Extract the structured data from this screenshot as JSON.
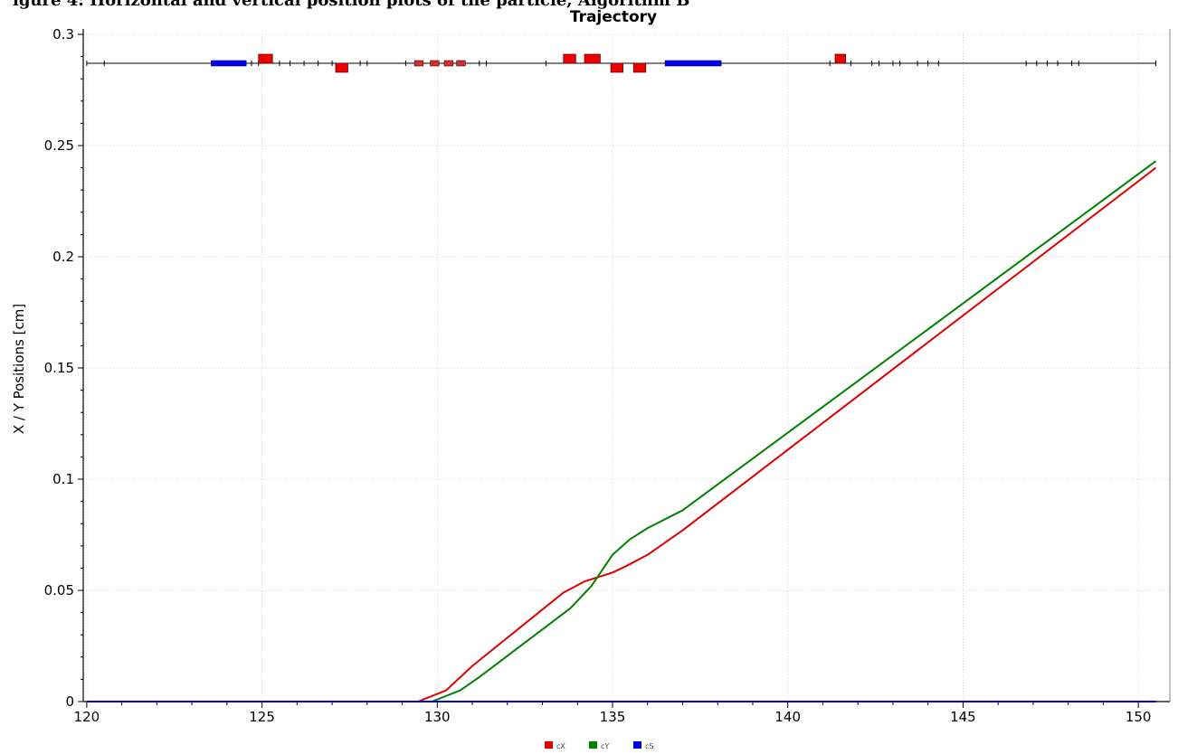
{
  "caption": "igure 4: Horizontal and vertical position plots of the particle, Algorithm B",
  "chart_data": {
    "type": "line",
    "title": "Trajectory",
    "xlabel": "",
    "ylabel": "X / Y Positions [cm]",
    "xlim": [
      119.9,
      150.9
    ],
    "ylim": [
      0,
      0.3
    ],
    "xticks": [
      "120",
      "125",
      "130",
      "135",
      "140",
      "145",
      "150"
    ],
    "yticks": [
      "0",
      "0.05",
      "0.1",
      "0.15",
      "0.2",
      "0.25",
      "0.3"
    ],
    "grid": true,
    "legend_position": "bottom-center",
    "series": [
      {
        "name": "cX",
        "color": "#e00000",
        "points": [
          [
            120,
            0
          ],
          [
            129.45,
            0
          ],
          [
            130.25,
            0.005
          ],
          [
            131,
            0.016
          ],
          [
            133.6,
            0.049
          ],
          [
            134.2,
            0.054
          ],
          [
            135,
            0.058
          ],
          [
            135.4,
            0.061
          ],
          [
            136,
            0.066
          ],
          [
            137,
            0.077
          ],
          [
            150.5,
            0.24
          ]
        ]
      },
      {
        "name": "cY",
        "color": "#008000",
        "points": [
          [
            120,
            0
          ],
          [
            129.85,
            0
          ],
          [
            130.65,
            0.005
          ],
          [
            131.2,
            0.011
          ],
          [
            133.8,
            0.042
          ],
          [
            134.4,
            0.052
          ],
          [
            135,
            0.066
          ],
          [
            135.5,
            0.073
          ],
          [
            136,
            0.078
          ],
          [
            137,
            0.086
          ],
          [
            150.5,
            0.243
          ]
        ]
      },
      {
        "name": "cS",
        "color": "#0000dd",
        "points": [
          [
            120,
            0
          ],
          [
            150.5,
            0
          ]
        ]
      }
    ],
    "lattice": {
      "beamline_y": 0.287,
      "line_color": "#000000",
      "line_range": [
        120,
        150.5
      ],
      "markers": [
        120,
        120.5,
        124.7,
        124.9,
        125.5,
        125.8,
        126.2,
        126.6,
        127,
        127.8,
        128,
        129.1,
        131.2,
        131.4,
        133.1,
        141.2,
        141.8,
        142.4,
        142.6,
        143,
        143.2,
        143.7,
        144,
        144.3,
        146.8,
        147.1,
        147.4,
        147.7,
        148.1,
        148.3,
        150.5
      ],
      "dipoles": [
        {
          "x1": 123.55,
          "x2": 124.55,
          "color": "#0000ee"
        },
        {
          "x1": 136.5,
          "x2": 138.1,
          "color": "#0000ee"
        }
      ],
      "quads_up": [
        {
          "x1": 124.9,
          "x2": 125.3
        },
        {
          "x1": 133.6,
          "x2": 133.95
        },
        {
          "x1": 134.2,
          "x2": 134.65
        },
        {
          "x1": 141.35,
          "x2": 141.65
        }
      ],
      "quads_down": [
        {
          "x1": 127.1,
          "x2": 127.45
        },
        {
          "x1": 134.95,
          "x2": 135.3
        },
        {
          "x1": 135.6,
          "x2": 135.95
        }
      ],
      "small_elements": [
        {
          "x1": 129.35,
          "x2": 129.6
        },
        {
          "x1": 129.8,
          "x2": 130.05
        },
        {
          "x1": 130.2,
          "x2": 130.45
        },
        {
          "x1": 130.55,
          "x2": 130.8
        }
      ],
      "quad_color": "#ee0000",
      "small_color": "#d03030"
    }
  }
}
